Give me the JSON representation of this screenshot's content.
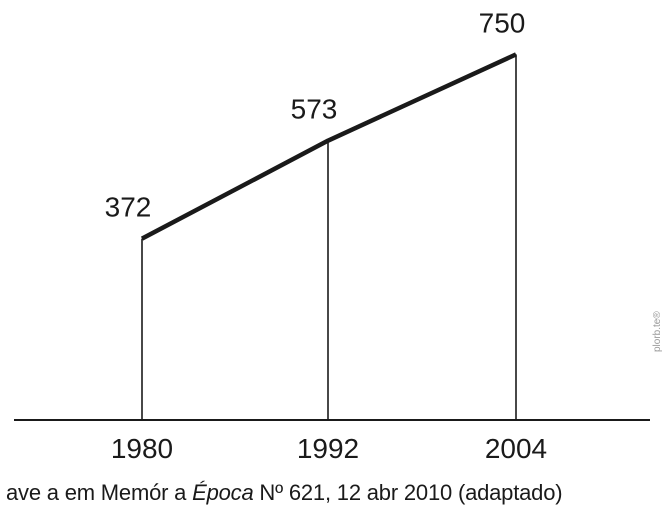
{
  "chart_data": {
    "type": "line",
    "categories": [
      "1980",
      "1992",
      "2004"
    ],
    "values": [
      372,
      573,
      750
    ],
    "title": "",
    "xlabel": "",
    "ylabel": "",
    "ylim": [
      0,
      800
    ],
    "grid": false,
    "data_labels": [
      "372",
      "573",
      "750"
    ],
    "drop_lines": true
  },
  "source": {
    "part1": "ave a   em Memór a ",
    "magazine": "Época",
    "part2": "  Nº 621, 12 abr  2010 (adaptado)"
  },
  "watermark": "plorb.te®"
}
